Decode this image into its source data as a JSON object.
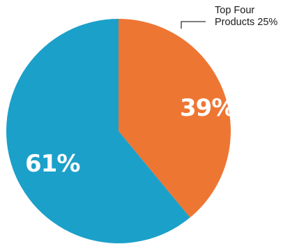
{
  "chart_data": {
    "type": "pie",
    "slices": [
      {
        "label": "39%",
        "value": 39,
        "color": "#ee7633"
      },
      {
        "label": "61%",
        "value": 61,
        "color": "#1ba0c9"
      }
    ],
    "callout": {
      "line1": "Top Four",
      "line2": "Products 25%"
    }
  }
}
